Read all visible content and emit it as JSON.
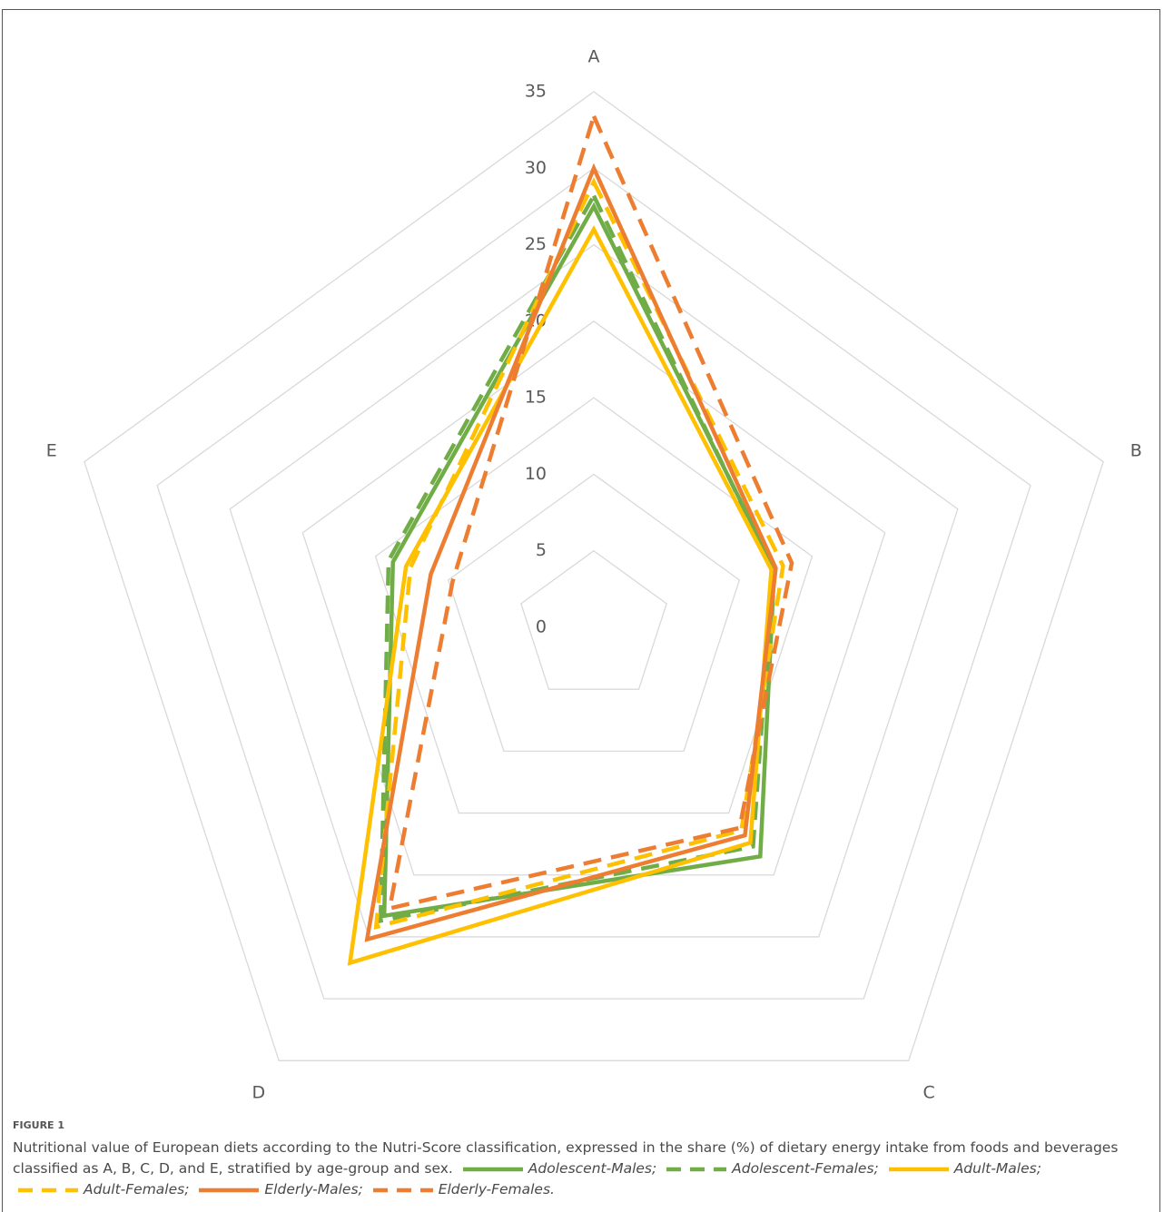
{
  "chart_data": {
    "type": "radar",
    "categories": [
      "A",
      "B",
      "C",
      "D",
      "E"
    ],
    "rlim": [
      0,
      35
    ],
    "rticks": [
      0,
      5,
      10,
      15,
      20,
      25,
      30,
      35
    ],
    "grid": true,
    "series": [
      {
        "name": "Adolescent-Males;",
        "color": "#70ad47",
        "dashed": false,
        "values": [
          27.5,
          12.4,
          18.5,
          23.3,
          13.8
        ]
      },
      {
        "name": "Adolescent-Females;",
        "color": "#70ad47",
        "dashed": true,
        "values": [
          28.2,
          12.3,
          17.7,
          23.7,
          14.1
        ]
      },
      {
        "name": "Adult-Males;",
        "color": "#ffc000",
        "dashed": false,
        "values": [
          26,
          12.2,
          17.4,
          27.1,
          12.9
        ]
      },
      {
        "name": "Adult-Females;",
        "color": "#ffc000",
        "dashed": true,
        "values": [
          29.1,
          13,
          16.4,
          24.2,
          12.6
        ]
      },
      {
        "name": "Elderly-Males;",
        "color": "#ed7d31",
        "dashed": false,
        "values": [
          30,
          12.5,
          16.8,
          25.2,
          11.2
        ]
      },
      {
        "name": "Elderly-Females.",
        "color": "#ed7d31",
        "dashed": true,
        "values": [
          33.4,
          13.6,
          16.2,
          22.7,
          9.7
        ]
      }
    ]
  },
  "figure": {
    "label": "FIGURE 1",
    "caption": "Nutritional value of European diets according to the Nutri-Score classification, expressed in the share (%) of dietary energy intake from foods and beverages classified as A, B, C, D, and E, stratified by age-group and sex."
  }
}
